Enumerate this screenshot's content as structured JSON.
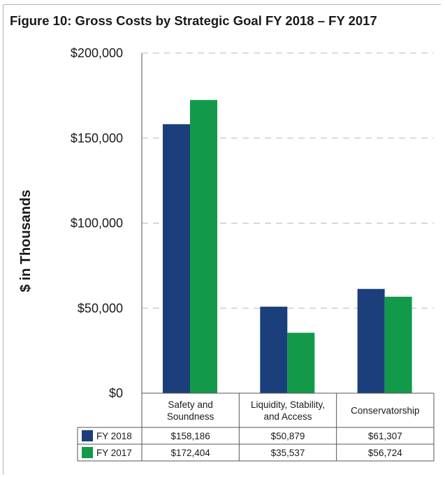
{
  "figure_title": "Figure 10:  Gross Costs by Strategic Goal FY 2018 – FY 2017",
  "chart_data": {
    "type": "bar",
    "title": "Figure 10:  Gross Costs by Strategic Goal FY 2018 – FY 2017",
    "ylabel": "$ in Thousands",
    "categories": [
      [
        "Safety and",
        "Soundness"
      ],
      [
        "Liquidity, Stability,",
        "and Access"
      ],
      [
        "Conservatorship"
      ]
    ],
    "series": [
      {
        "name": "FY 2018",
        "color": "#1a3f7a",
        "values": [
          158186,
          50879,
          61307
        ],
        "labels": [
          "$158,186",
          "$50,879",
          "$61,307"
        ]
      },
      {
        "name": "FY 2017",
        "color": "#129a4a",
        "values": [
          172404,
          35537,
          56724
        ],
        "labels": [
          "$172,404",
          "$35,537",
          "$56,724"
        ]
      }
    ],
    "ylim": [
      0,
      200000
    ],
    "yticks": [
      0,
      50000,
      100000,
      150000,
      200000
    ],
    "ytick_labels": [
      "$0",
      "$50,000",
      "$100,000",
      "$150,000",
      "$200,000"
    ],
    "grid": true,
    "legend": "data-table"
  }
}
